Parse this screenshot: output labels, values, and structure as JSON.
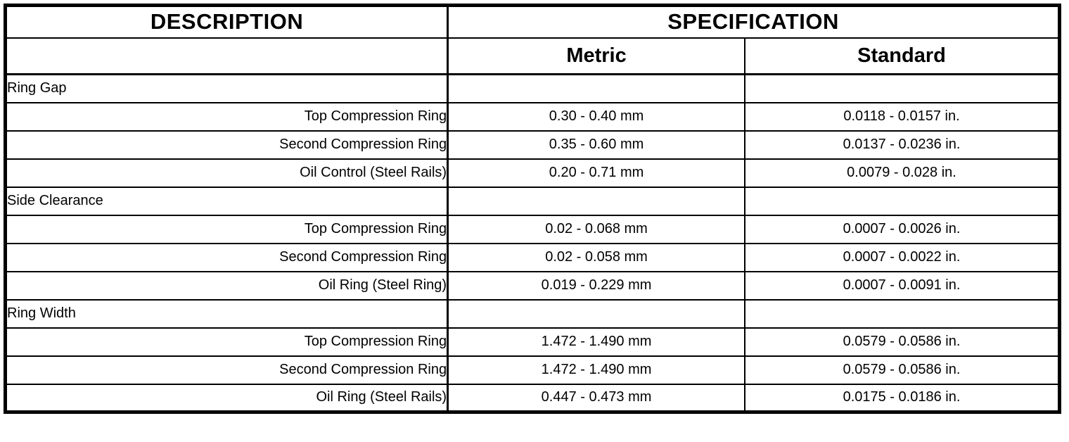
{
  "table": {
    "headers": {
      "description": "DESCRIPTION",
      "specification": "SPECIFICATION",
      "metric": "Metric",
      "standard": "Standard"
    },
    "sections": [
      {
        "title": "Ring Gap",
        "rows": [
          {
            "label": "Top Compression Ring",
            "metric": "0.30 - 0.40 mm",
            "standard": "0.0118 - 0.0157 in."
          },
          {
            "label": "Second Compression Ring",
            "metric": "0.35 - 0.60 mm",
            "standard": "0.0137 - 0.0236 in."
          },
          {
            "label": "Oil Control (Steel Rails)",
            "metric": "0.20 - 0.71 mm",
            "standard": "0.0079 - 0.028 in."
          }
        ]
      },
      {
        "title": "Side Clearance",
        "rows": [
          {
            "label": "Top Compression Ring",
            "metric": "0.02 - 0.068 mm",
            "standard": "0.0007 - 0.0026 in."
          },
          {
            "label": "Second Compression Ring",
            "metric": "0.02 - 0.058 mm",
            "standard": "0.0007 - 0.0022 in."
          },
          {
            "label": "Oil Ring (Steel Ring)",
            "metric": "0.019 - 0.229 mm",
            "standard": "0.0007 - 0.0091 in."
          }
        ]
      },
      {
        "title": "Ring Width",
        "rows": [
          {
            "label": "Top Compression Ring",
            "metric": "1.472 - 1.490 mm",
            "standard": "0.0579 - 0.0586 in."
          },
          {
            "label": "Second Compression Ring",
            "metric": "1.472 - 1.490 mm",
            "standard": "0.0579 - 0.0586 in."
          },
          {
            "label": "Oil Ring (Steel Rails)",
            "metric": "0.447 - 0.473 mm",
            "standard": "0.0175 - 0.0186 in."
          }
        ]
      }
    ]
  }
}
